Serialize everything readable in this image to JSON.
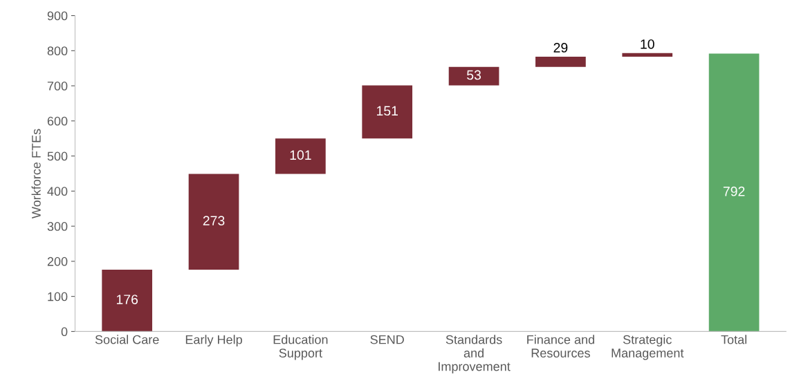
{
  "chart_data": {
    "type": "bar",
    "ylabel": "Workforce FTEs",
    "categories": [
      "Social Care",
      "Early Help",
      "Education\nSupport",
      "SEND",
      "Standards\nand\nImprovement",
      "Finance and\nResources",
      "Strategic\nManagement",
      "Total"
    ],
    "values": [
      176,
      273,
      101,
      151,
      53,
      29,
      10,
      792
    ],
    "base": [
      0,
      176,
      449,
      550,
      701,
      754,
      783,
      0
    ],
    "colors": [
      "#7b2c36",
      "#7b2c36",
      "#7b2c36",
      "#7b2c36",
      "#7b2c36",
      "#7b2c36",
      "#7b2c36",
      "#5daa68"
    ],
    "data_labels": true,
    "ylim": [
      0,
      900
    ],
    "yticks": [
      0,
      100,
      200,
      300,
      400,
      500,
      600,
      700,
      800,
      900
    ],
    "grid": false,
    "legend": false
  }
}
